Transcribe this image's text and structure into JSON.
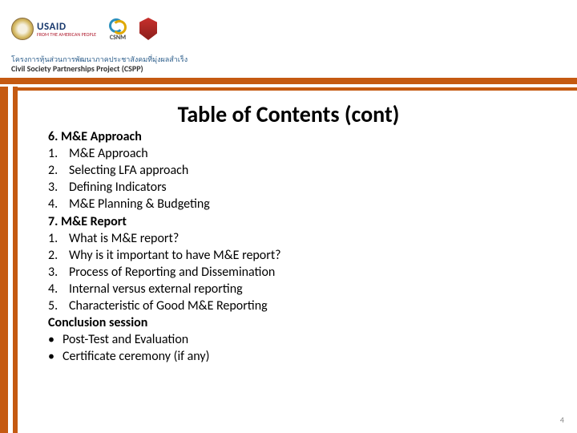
{
  "header": {
    "usaid_name": "USAID",
    "usaid_tagline": "FROM THE AMERICAN PEOPLE",
    "csnm_label": "CSNM",
    "thai_line": "โครงการหุ้นส่วนการพัฒนาภาคประชาสังคมที่มุ่งผลสำเร็ง",
    "eng_line": "Civil Society Partnerships Project (CSPP)"
  },
  "colors": {
    "accent_orange": "#c55a11",
    "usaid_blue": "#1a3a6e",
    "usaid_red": "#b22234"
  },
  "title": "Table of Contents (cont)",
  "sections": {
    "s6": {
      "heading": "6. M&E Approach",
      "items": [
        "M&E Approach",
        "Selecting LFA approach",
        "Defining Indicators",
        "M&E Planning & Budgeting"
      ]
    },
    "s7": {
      "heading": "7. M&E Report",
      "items": [
        "What is M&E report?",
        "Why is it important to have M&E report?",
        "Process of Reporting and Dissemination",
        "Internal versus external reporting",
        "Characteristic of Good M&E Reporting"
      ]
    },
    "conclusion": {
      "heading": "Conclusion session",
      "bullets": [
        "Post-Test and Evaluation",
        "Certificate ceremony (if any)"
      ]
    }
  },
  "page_number": "4"
}
